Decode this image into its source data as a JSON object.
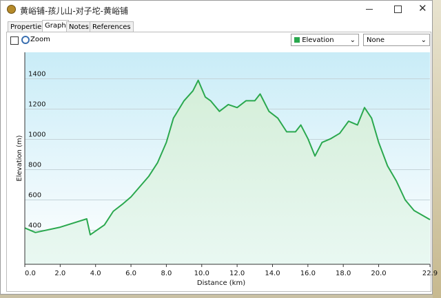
{
  "window": {
    "title": "黄峪铺-孩儿山-对子坨-黄峪铺"
  },
  "tabs": [
    "Properties",
    "Graph",
    "Notes",
    "References"
  ],
  "controls": {
    "zoom": "Zoom",
    "compare_select": "None"
  },
  "chart_data": {
    "type": "line",
    "x_label": "Distance  (km)",
    "y_label": "Elevation (m)",
    "x": [
      0,
      0.6,
      2.0,
      3.5,
      3.7,
      4.5,
      5.0,
      5.5,
      6.0,
      7.0,
      7.5,
      8.0,
      8.4,
      9.0,
      9.5,
      9.8,
      10.2,
      10.5,
      11.0,
      11.5,
      12.0,
      12.5,
      13.0,
      13.3,
      13.8,
      14.3,
      14.8,
      15.3,
      15.6,
      16.0,
      16.4,
      16.8,
      17.3,
      17.8,
      18.3,
      18.8,
      19.2,
      19.6,
      20.0,
      20.5,
      21.0,
      21.5,
      22.0,
      22.9
    ],
    "series": [
      {
        "name": "Elevation",
        "color": "#2aa84e",
        "values": [
          415,
          385,
          420,
          475,
          370,
          435,
          525,
          570,
          620,
          755,
          845,
          980,
          1140,
          1255,
          1320,
          1390,
          1280,
          1255,
          1185,
          1230,
          1210,
          1255,
          1255,
          1300,
          1185,
          1140,
          1050,
          1050,
          1095,
          1005,
          890,
          980,
          1005,
          1040,
          1120,
          1095,
          1210,
          1140,
          980,
          825,
          725,
          600,
          530,
          470
        ]
      }
    ],
    "xlim": [
      0,
      22.9
    ],
    "ylim": [
      175,
      1575
    ],
    "xticks": [
      {
        "value": 0,
        "label": "0.0"
      },
      {
        "value": 2,
        "label": "2.0"
      },
      {
        "value": 4,
        "label": "4.0"
      },
      {
        "value": 6,
        "label": "6.0"
      },
      {
        "value": 8,
        "label": "8.0"
      },
      {
        "value": 10,
        "label": "10.0"
      },
      {
        "value": 12,
        "label": "12.0"
      },
      {
        "value": 14,
        "label": "14.0"
      },
      {
        "value": 16,
        "label": "16.0"
      },
      {
        "value": 18,
        "label": "18.0"
      },
      {
        "value": 20,
        "label": "20.0"
      },
      22.9
    ],
    "yticks": [
      400,
      600,
      800,
      1000,
      1200,
      1400
    ],
    "grid": true
  }
}
